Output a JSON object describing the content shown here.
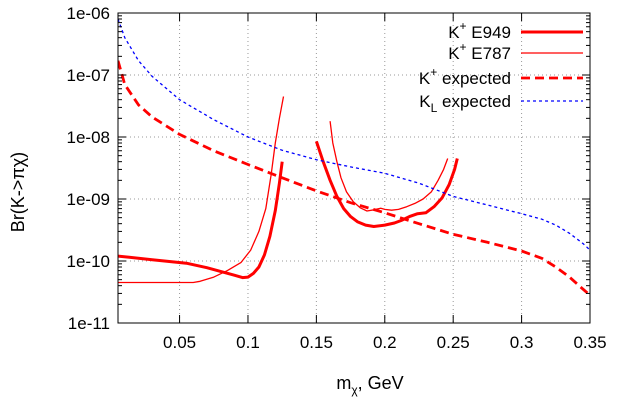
{
  "chart_data": {
    "type": "line",
    "xlabel": {
      "base": "m",
      "sub": "χ",
      "rest": ", GeV"
    },
    "ylabel": "Br(K->πχ)",
    "xlim": [
      0.005,
      0.35
    ],
    "ylim": [
      1e-11,
      1e-06
    ],
    "y_scale": "log",
    "grid": true,
    "legend_position": "top-right",
    "x_ticks": [
      {
        "value": 0.05,
        "label": "0.05"
      },
      {
        "value": 0.1,
        "label": "0.1"
      },
      {
        "value": 0.15,
        "label": "0.15"
      },
      {
        "value": 0.2,
        "label": "0.2"
      },
      {
        "value": 0.25,
        "label": "0.25"
      },
      {
        "value": 0.3,
        "label": "0.3"
      },
      {
        "value": 0.35,
        "label": "0.35"
      }
    ],
    "y_ticks": [
      {
        "value": 1e-11,
        "label": "1e-11"
      },
      {
        "value": 1e-10,
        "label": "1e-10"
      },
      {
        "value": 1e-09,
        "label": "1e-09"
      },
      {
        "value": 1e-08,
        "label": "1e-08"
      },
      {
        "value": 1e-07,
        "label": "1e-07"
      },
      {
        "value": 1e-06,
        "label": "1e-06"
      }
    ],
    "series": [
      {
        "name": {
          "base": "K",
          "sup": "+",
          "rest": " E949"
        },
        "color": "#ff0000",
        "width": 3,
        "dash": "",
        "segments": [
          [
            [
              0.005,
              1.2e-10
            ],
            [
              0.03,
              1.05e-10
            ],
            [
              0.055,
              9.2e-11
            ],
            [
              0.07,
              7.8e-11
            ],
            [
              0.082,
              6.6e-11
            ],
            [
              0.09,
              5.9e-11
            ],
            [
              0.096,
              5.4e-11
            ],
            [
              0.1,
              5.5e-11
            ],
            [
              0.104,
              6.3e-11
            ],
            [
              0.108,
              8e-11
            ],
            [
              0.112,
              1.25e-10
            ],
            [
              0.116,
              2.5e-10
            ],
            [
              0.12,
              6.5e-10
            ],
            [
              0.123,
              1.8e-09
            ],
            [
              0.125,
              4e-09
            ]
          ],
          [
            [
              0.15,
              8.5e-09
            ],
            [
              0.155,
              4e-09
            ],
            [
              0.16,
              2e-09
            ],
            [
              0.165,
              1.1e-09
            ],
            [
              0.17,
              7e-10
            ],
            [
              0.175,
              5.2e-10
            ],
            [
              0.18,
              4.3e-10
            ],
            [
              0.186,
              3.8e-10
            ],
            [
              0.192,
              3.6e-10
            ],
            [
              0.2,
              3.8e-10
            ],
            [
              0.207,
              4.1e-10
            ],
            [
              0.212,
              4.5e-10
            ],
            [
              0.218,
              5.2e-10
            ],
            [
              0.224,
              5.8e-10
            ],
            [
              0.23,
              6e-10
            ],
            [
              0.236,
              7.5e-10
            ],
            [
              0.242,
              1.05e-09
            ],
            [
              0.247,
              1.7e-09
            ],
            [
              0.251,
              3e-09
            ],
            [
              0.253,
              4.5e-09
            ]
          ]
        ]
      },
      {
        "name": {
          "base": "K",
          "sup": "+",
          "rest": " E787"
        },
        "color": "#ff0000",
        "width": 1.3,
        "dash": "",
        "segments": [
          [
            [
              0.005,
              4.5e-11
            ],
            [
              0.06,
              4.5e-11
            ],
            [
              0.065,
              4.7e-11
            ],
            [
              0.075,
              5.5e-11
            ],
            [
              0.085,
              7e-11
            ],
            [
              0.095,
              9.5e-11
            ],
            [
              0.102,
              1.5e-10
            ],
            [
              0.108,
              3e-10
            ],
            [
              0.113,
              7e-10
            ],
            [
              0.117,
              2.5e-09
            ],
            [
              0.12,
              8e-09
            ],
            [
              0.123,
              2e-08
            ],
            [
              0.126,
              4.5e-08
            ]
          ],
          [
            [
              0.16,
              1.8e-08
            ],
            [
              0.162,
              8e-09
            ],
            [
              0.165,
              4e-09
            ],
            [
              0.168,
              2.2e-09
            ],
            [
              0.172,
              1.3e-09
            ],
            [
              0.177,
              9e-10
            ],
            [
              0.182,
              7.2e-10
            ],
            [
              0.187,
              6.4e-10
            ],
            [
              0.192,
              6.7e-10
            ],
            [
              0.197,
              7.1e-10
            ],
            [
              0.2,
              6.8e-10
            ],
            [
              0.205,
              6.6e-10
            ],
            [
              0.21,
              6.8e-10
            ],
            [
              0.216,
              7.5e-10
            ],
            [
              0.222,
              8.5e-10
            ],
            [
              0.228,
              1e-09
            ],
            [
              0.234,
              1.3e-09
            ],
            [
              0.239,
              2e-09
            ],
            [
              0.243,
              3e-09
            ],
            [
              0.246,
              4.5e-09
            ]
          ]
        ]
      },
      {
        "name": {
          "base": "K",
          "sup": "+",
          "rest": " expected"
        },
        "color": "#ff0000",
        "width": 2.8,
        "dash": "9 5",
        "segments": [
          [
            [
              0.005,
              1.7e-07
            ],
            [
              0.01,
              7e-08
            ],
            [
              0.02,
              3.3e-08
            ],
            [
              0.03,
              2.1e-08
            ],
            [
              0.05,
              1.1e-08
            ],
            [
              0.075,
              6e-09
            ],
            [
              0.1,
              3.6e-09
            ],
            [
              0.125,
              2.2e-09
            ],
            [
              0.15,
              1.35e-09
            ],
            [
              0.175,
              8.7e-10
            ],
            [
              0.2,
              6e-10
            ],
            [
              0.225,
              4e-10
            ],
            [
              0.25,
              2.7e-10
            ],
            [
              0.275,
              2e-10
            ],
            [
              0.3,
              1.45e-10
            ],
            [
              0.315,
              1.1e-10
            ],
            [
              0.325,
              8e-11
            ],
            [
              0.335,
              5.5e-11
            ],
            [
              0.342,
              4e-11
            ],
            [
              0.35,
              2.8e-11
            ]
          ]
        ]
      },
      {
        "name": {
          "base": "K",
          "sub": "L",
          "rest": " expected"
        },
        "color": "#0000ff",
        "width": 1.3,
        "dash": "3 3",
        "segments": [
          [
            [
              0.005,
              8e-07
            ],
            [
              0.01,
              4e-07
            ],
            [
              0.02,
              1.7e-07
            ],
            [
              0.03,
              9.5e-08
            ],
            [
              0.05,
              4e-08
            ],
            [
              0.075,
              1.9e-08
            ],
            [
              0.1,
              1e-08
            ],
            [
              0.125,
              6.1e-09
            ],
            [
              0.15,
              4.3e-09
            ],
            [
              0.175,
              3.3e-09
            ],
            [
              0.2,
              2.6e-09
            ],
            [
              0.225,
              1.8e-09
            ],
            [
              0.25,
              1.1e-09
            ],
            [
              0.275,
              8e-10
            ],
            [
              0.3,
              5.8e-10
            ],
            [
              0.315,
              4.7e-10
            ],
            [
              0.325,
              3.8e-10
            ],
            [
              0.335,
              2.8e-10
            ],
            [
              0.345,
              1.9e-10
            ],
            [
              0.35,
              1.5e-10
            ]
          ]
        ]
      }
    ]
  }
}
